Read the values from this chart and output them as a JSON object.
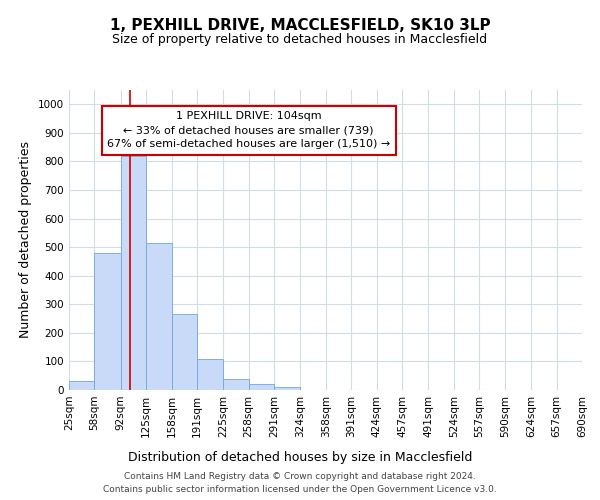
{
  "title": "1, PEXHILL DRIVE, MACCLESFIELD, SK10 3LP",
  "subtitle": "Size of property relative to detached houses in Macclesfield",
  "xlabel": "Distribution of detached houses by size in Macclesfield",
  "ylabel": "Number of detached properties",
  "footer_line1": "Contains HM Land Registry data © Crown copyright and database right 2024.",
  "footer_line2": "Contains public sector information licensed under the Open Government Licence v3.0.",
  "bin_edges": [
    25,
    58,
    92,
    125,
    158,
    191,
    225,
    258,
    291,
    324,
    358,
    391,
    424,
    457,
    491,
    524,
    557,
    590,
    624,
    657,
    690
  ],
  "bar_heights": [
    30,
    480,
    820,
    515,
    265,
    110,
    40,
    20,
    10,
    0,
    0,
    0,
    0,
    0,
    0,
    0,
    0,
    0,
    0,
    0
  ],
  "bar_color": "#c9daf8",
  "bar_edge_color": "#6fa8dc",
  "property_line_x": 104,
  "property_line_color": "#cc0000",
  "annotation_text": "1 PEXHILL DRIVE: 104sqm\n← 33% of detached houses are smaller (739)\n67% of semi-detached houses are larger (1,510) →",
  "annotation_box_facecolor": "#ffffff",
  "annotation_box_edgecolor": "#cc0000",
  "ylim": [
    0,
    1050
  ],
  "yticks": [
    0,
    100,
    200,
    300,
    400,
    500,
    600,
    700,
    800,
    900,
    1000
  ],
  "bg_color": "#ffffff",
  "plot_bg_color": "#ffffff",
  "grid_color": "#d0dce8",
  "title_fontsize": 11,
  "subtitle_fontsize": 9,
  "ylabel_fontsize": 9,
  "xlabel_fontsize": 9,
  "tick_fontsize": 7.5,
  "footer_fontsize": 6.5,
  "annotation_fontsize": 8
}
